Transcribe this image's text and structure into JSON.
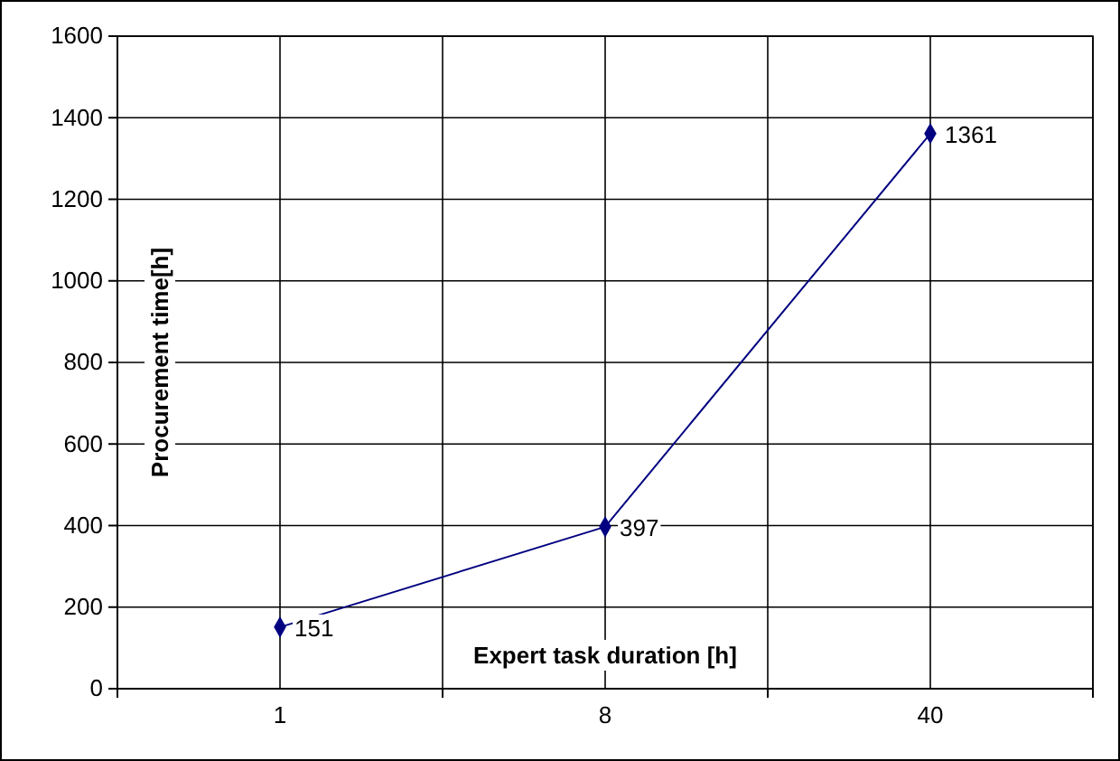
{
  "chart_data": {
    "type": "line",
    "xlabel": "Expert task duration [h]",
    "ylabel": "Procurement time[h]",
    "categories": [
      "1",
      "8",
      "40"
    ],
    "series": [
      {
        "color": "#000080",
        "values": [
          151,
          397,
          1361
        ]
      }
    ],
    "ylim": [
      0,
      1600
    ],
    "yticks": [
      0,
      200,
      400,
      600,
      800,
      1000,
      1200,
      1400,
      1600
    ],
    "grid": true,
    "marker": "diamond",
    "data_labels": true
  }
}
